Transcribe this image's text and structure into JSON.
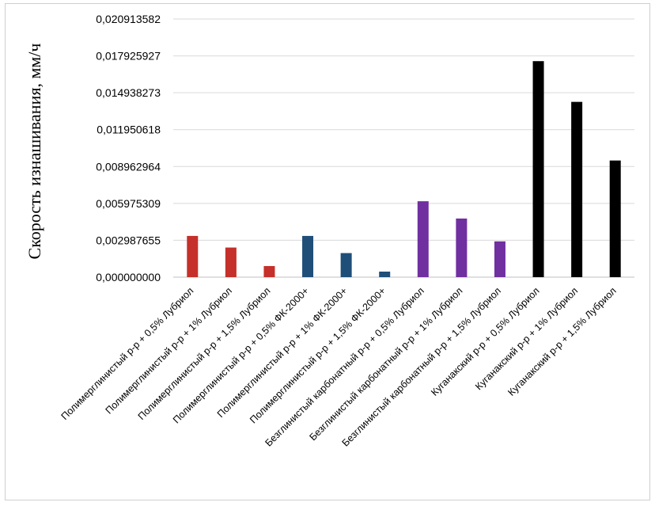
{
  "chart_data": {
    "type": "bar",
    "title": "",
    "xlabel": "",
    "ylabel": "Скорость изнашивания, мм/ч",
    "ylim": [
      0,
      0.020913582
    ],
    "yticks": [
      "0,000000000",
      "0,002987655",
      "0,005975309",
      "0,008962964",
      "0,011950618",
      "0,014938273",
      "0,017925927",
      "0,020913582"
    ],
    "ytick_values": [
      0,
      0.002987655,
      0.005975309,
      0.008962964,
      0.011950618,
      0.014938273,
      0.017925927,
      0.020913582
    ],
    "grid": true,
    "legend": "none",
    "categories": [
      "Полимерглинистый р-р + 0,5% Лубриол",
      "Полимерглинистый р-р + 1% Лубриол",
      "Полимерглинистый р-р + 1,5% Лубриол",
      "Полимерглинистый р-р + 0,5% ФК-2000+",
      "Полимерглинистый р-р + 1% ФК-2000+",
      "Полимерглинистый р-р + 1,5% ФК-2000+",
      "Безглинистый карбонатный р-р + 0,5% Лубриол",
      "Безглинистый карбонатный р-р + 1% Лубриол",
      "Безглинистый карбонатный р-р + 1,5% Лубриол",
      "Куганакский р-р + 0,5% Лубриол",
      "Куганакский р-р + 1% Лубриол",
      "Куганакский р-р + 1,5% Лубриол"
    ],
    "values": [
      0.00334,
      0.0024,
      0.0009,
      0.00334,
      0.00195,
      0.00045,
      0.00615,
      0.00475,
      0.0029,
      0.0175,
      0.0142,
      0.00945
    ],
    "colors": [
      "#c5302a",
      "#c5302a",
      "#c5302a",
      "#1f4e79",
      "#1f4e79",
      "#1f4e79",
      "#7030a0",
      "#7030a0",
      "#7030a0",
      "#000000",
      "#000000",
      "#000000"
    ]
  }
}
